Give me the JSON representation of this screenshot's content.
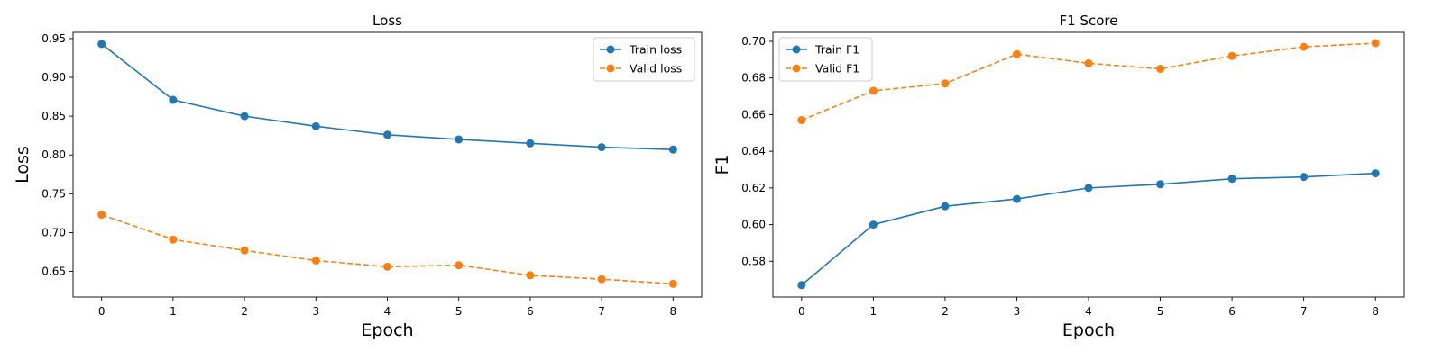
{
  "chart_data": [
    {
      "type": "line",
      "title": "Loss",
      "xlabel": "Epoch",
      "ylabel": "Loss",
      "x": [
        0,
        1,
        2,
        3,
        4,
        5,
        6,
        7,
        8
      ],
      "xticks": [
        "0",
        "1",
        "2",
        "3",
        "4",
        "5",
        "6",
        "7",
        "8"
      ],
      "yticks": [
        "0.65",
        "0.70",
        "0.75",
        "0.80",
        "0.85",
        "0.90",
        "0.95"
      ],
      "ylim": [
        0.617,
        0.958
      ],
      "xlim": [
        -0.4,
        8.4
      ],
      "grid": false,
      "legend_position": "top-right",
      "series": [
        {
          "name": "Train loss",
          "color": "#1f77b4",
          "dashed": false,
          "values": [
            0.943,
            0.871,
            0.85,
            0.837,
            0.826,
            0.82,
            0.815,
            0.81,
            0.807
          ]
        },
        {
          "name": "Valid loss",
          "color": "#ff7f0e",
          "dashed": true,
          "values": [
            0.723,
            0.691,
            0.677,
            0.664,
            0.656,
            0.658,
            0.645,
            0.64,
            0.634
          ]
        }
      ]
    },
    {
      "type": "line",
      "title": "F1 Score",
      "xlabel": "Epoch",
      "ylabel": "F1",
      "x": [
        0,
        1,
        2,
        3,
        4,
        5,
        6,
        7,
        8
      ],
      "xticks": [
        "0",
        "1",
        "2",
        "3",
        "4",
        "5",
        "6",
        "7",
        "8"
      ],
      "yticks": [
        "0.58",
        "0.60",
        "0.62",
        "0.64",
        "0.66",
        "0.68",
        "0.70"
      ],
      "ylim": [
        0.5605,
        0.7049
      ],
      "xlim": [
        -0.4,
        8.4
      ],
      "grid": false,
      "legend_position": "top-left",
      "series": [
        {
          "name": "Train F1",
          "color": "#1f77b4",
          "dashed": false,
          "values": [
            0.567,
            0.6,
            0.61,
            0.614,
            0.62,
            0.622,
            0.625,
            0.626,
            0.628
          ]
        },
        {
          "name": "Valid F1",
          "color": "#ff7f0e",
          "dashed": true,
          "values": [
            0.657,
            0.673,
            0.677,
            0.693,
            0.688,
            0.685,
            0.692,
            0.697,
            0.699
          ]
        }
      ]
    }
  ]
}
